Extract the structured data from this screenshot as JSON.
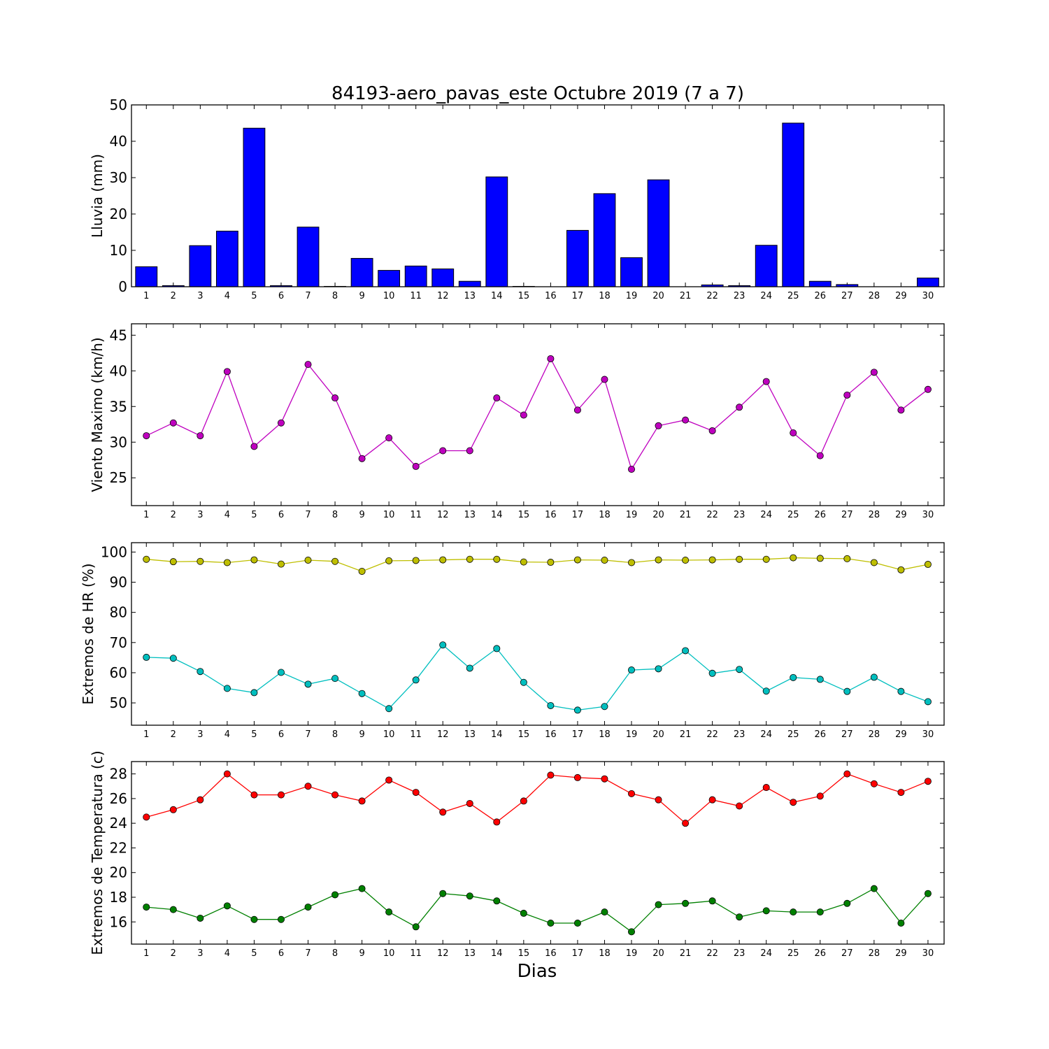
{
  "title": "84193-aero_pavas_este Octubre 2019  (7 a 7)",
  "xlabel": "Dias",
  "chart_data": [
    {
      "type": "bar",
      "ylabel": "Lluvia (mm)",
      "ylim": [
        0,
        50
      ],
      "yticks": [
        0,
        10,
        20,
        30,
        40,
        50
      ],
      "categories": [
        1,
        2,
        3,
        4,
        5,
        6,
        7,
        8,
        9,
        10,
        11,
        12,
        13,
        14,
        15,
        16,
        17,
        18,
        19,
        20,
        21,
        22,
        23,
        24,
        25,
        26,
        27,
        28,
        29,
        30
      ],
      "series": [
        {
          "color": "#0000ff",
          "values": [
            5.5,
            0.3,
            11.3,
            15.3,
            43.6,
            0.3,
            16.4,
            0.1,
            7.8,
            4.5,
            5.7,
            4.9,
            1.5,
            30.2,
            0.1,
            0.0,
            15.5,
            25.6,
            8.0,
            29.4,
            0.0,
            0.5,
            0.3,
            11.4,
            45.0,
            1.5,
            0.6,
            0.0,
            0.0,
            2.4
          ]
        }
      ]
    },
    {
      "type": "line",
      "ylabel": "Viento Maximo (km/h)",
      "ylim": [
        21.1,
        46.6
      ],
      "yticks": [
        25,
        30,
        35,
        40,
        45
      ],
      "x": [
        1,
        2,
        3,
        4,
        5,
        6,
        7,
        8,
        9,
        10,
        11,
        12,
        13,
        14,
        15,
        16,
        17,
        18,
        19,
        20,
        21,
        22,
        23,
        24,
        25,
        26,
        27,
        28,
        29,
        30
      ],
      "series": [
        {
          "color": "#bf00bf",
          "values": [
            30.9,
            32.7,
            30.9,
            39.9,
            29.4,
            32.7,
            40.9,
            36.2,
            27.7,
            30.6,
            26.6,
            28.8,
            28.8,
            36.2,
            33.8,
            41.7,
            34.5,
            38.8,
            26.2,
            32.3,
            33.1,
            31.6,
            34.9,
            38.5,
            31.3,
            28.1,
            36.6,
            39.8,
            34.5,
            37.4
          ]
        }
      ]
    },
    {
      "type": "line",
      "ylabel": "Extremos de HR (%)",
      "ylim": [
        42.6,
        103.1
      ],
      "yticks": [
        50,
        60,
        70,
        80,
        90,
        100
      ],
      "x": [
        1,
        2,
        3,
        4,
        5,
        6,
        7,
        8,
        9,
        10,
        11,
        12,
        13,
        14,
        15,
        16,
        17,
        18,
        19,
        20,
        21,
        22,
        23,
        24,
        25,
        26,
        27,
        28,
        29,
        30
      ],
      "series": [
        {
          "color": "#bfbf00",
          "values": [
            97.6,
            96.8,
            96.9,
            96.5,
            97.4,
            96.0,
            97.3,
            96.9,
            93.6,
            97.1,
            97.2,
            97.4,
            97.6,
            97.6,
            96.7,
            96.6,
            97.4,
            97.3,
            96.5,
            97.4,
            97.3,
            97.4,
            97.6,
            97.6,
            98.1,
            97.9,
            97.8,
            96.5,
            94.1,
            95.9
          ]
        },
        {
          "color": "#00bfbf",
          "values": [
            65.1,
            64.8,
            60.4,
            54.8,
            53.4,
            60.1,
            56.2,
            58.1,
            53.1,
            48.1,
            57.6,
            69.2,
            61.5,
            68.0,
            56.8,
            49.1,
            47.6,
            48.8,
            60.9,
            61.3,
            67.3,
            59.8,
            61.1,
            53.9,
            58.4,
            57.8,
            53.8,
            58.5,
            53.8,
            50.4
          ]
        }
      ]
    },
    {
      "type": "line",
      "ylabel": "Extremos de Temperatura (c)",
      "ylim": [
        14.2,
        29.0
      ],
      "yticks": [
        16,
        18,
        20,
        22,
        24,
        26,
        28
      ],
      "x": [
        1,
        2,
        3,
        4,
        5,
        6,
        7,
        8,
        9,
        10,
        11,
        12,
        13,
        14,
        15,
        16,
        17,
        18,
        19,
        20,
        21,
        22,
        23,
        24,
        25,
        26,
        27,
        28,
        29,
        30
      ],
      "series": [
        {
          "color": "#ff0000",
          "values": [
            24.5,
            25.1,
            25.9,
            28.0,
            26.3,
            26.3,
            27.0,
            26.3,
            25.8,
            27.5,
            26.5,
            24.9,
            25.6,
            24.1,
            25.8,
            27.9,
            27.7,
            27.6,
            26.4,
            25.9,
            24.0,
            25.9,
            25.4,
            26.9,
            25.7,
            26.2,
            28.0,
            27.2,
            26.5,
            27.4
          ]
        },
        {
          "color": "#008000",
          "values": [
            17.2,
            17.0,
            16.3,
            17.3,
            16.2,
            16.2,
            17.2,
            18.2,
            18.7,
            16.8,
            15.6,
            18.3,
            18.1,
            17.7,
            16.7,
            15.9,
            15.9,
            16.8,
            15.2,
            17.4,
            17.5,
            17.7,
            16.4,
            16.9,
            16.8,
            16.8,
            17.5,
            18.7,
            15.9,
            18.3
          ]
        }
      ]
    }
  ]
}
